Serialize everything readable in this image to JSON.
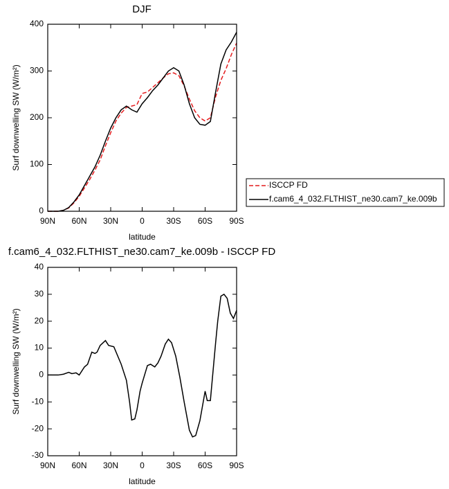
{
  "chart_data": [
    {
      "type": "line",
      "title": "DJF",
      "xlabel": "latitude",
      "ylabel": "Surf downwelling SW (W/m²)",
      "x": [
        90,
        80,
        75,
        70,
        65,
        60,
        55,
        50,
        45,
        40,
        35,
        30,
        25,
        20,
        15,
        10,
        5,
        0,
        -5,
        -10,
        -15,
        -20,
        -25,
        -30,
        -35,
        -40,
        -45,
        -50,
        -55,
        -60,
        -65,
        -70,
        -75,
        -80,
        -85,
        -90
      ],
      "series": [
        {
          "name": "ISCCP FD",
          "color": "#e41a1c",
          "dashed": true,
          "values": [
            0,
            0,
            2,
            7,
            18,
            32,
            50,
            68,
            88,
            110,
            140,
            168,
            193,
            210,
            222,
            225,
            228,
            252,
            255,
            265,
            275,
            285,
            294,
            296,
            290,
            268,
            240,
            215,
            200,
            193,
            200,
            245,
            280,
            305,
            335,
            360
          ]
        },
        {
          "name": "f.cam6_4_032.FLTHIST_ne30.cam7_ke.009b",
          "color": "#000000",
          "dashed": false,
          "values": [
            0,
            0,
            2,
            8,
            20,
            35,
            55,
            75,
            95,
            120,
            150,
            178,
            200,
            217,
            225,
            217,
            212,
            230,
            243,
            258,
            270,
            285,
            300,
            307,
            300,
            270,
            230,
            200,
            186,
            184,
            192,
            255,
            315,
            345,
            362,
            383
          ]
        }
      ],
      "xlim": [
        90,
        -90
      ],
      "xticks": [
        {
          "value": 90,
          "label": "90N"
        },
        {
          "value": 60,
          "label": "60N"
        },
        {
          "value": 30,
          "label": "30N"
        },
        0,
        {
          "value": -30,
          "label": "30S"
        },
        {
          "value": -60,
          "label": "60S"
        },
        {
          "value": -90,
          "label": "90S"
        }
      ],
      "ylim": [
        0,
        400
      ],
      "yticks": [
        0,
        100,
        200,
        300,
        400
      ],
      "legend": "right"
    },
    {
      "type": "line",
      "title": "f.cam6_4_032.FLTHIST_ne30.cam7_ke.009b - ISCCP FD",
      "xlabel": "latitude",
      "ylabel": "Surf downwelling SW (W/m²)",
      "x": [
        90,
        80,
        75,
        70,
        67,
        63,
        60,
        55,
        52,
        48,
        45,
        43,
        40,
        35,
        32,
        27,
        20,
        15,
        12,
        10,
        7,
        5,
        2,
        0,
        -5,
        -8,
        -12,
        -15,
        -18,
        -22,
        -25,
        -28,
        -32,
        -36,
        -40,
        -45,
        -48,
        -51,
        -55,
        -60,
        -62,
        -65,
        -70,
        -72,
        -75,
        -78,
        -81,
        -84,
        -87,
        -90
      ],
      "series": [
        {
          "color": "#000000",
          "dashed": false,
          "values": [
            0,
            0,
            0.3,
            1,
            0.5,
            0.8,
            0,
            3,
            4,
            8.5,
            8,
            8.5,
            11,
            12.8,
            11,
            10.5,
            4,
            -2,
            -10,
            -16.7,
            -16.3,
            -13,
            -6,
            -3,
            3.5,
            4,
            3,
            4.5,
            7,
            11.5,
            13.3,
            12,
            7,
            -1,
            -10,
            -20.5,
            -23,
            -22.5,
            -17,
            -6,
            -9.5,
            -9.5,
            12,
            20,
            29.3,
            30,
            28.5,
            23,
            21,
            24
          ]
        }
      ],
      "xlim": [
        90,
        -90
      ],
      "xticks": [
        {
          "value": 90,
          "label": "90N"
        },
        {
          "value": 60,
          "label": "60N"
        },
        {
          "value": 30,
          "label": "30N"
        },
        0,
        {
          "value": -30,
          "label": "30S"
        },
        {
          "value": -60,
          "label": "60S"
        },
        {
          "value": -90,
          "label": "90S"
        }
      ],
      "ylim": [
        -30,
        40
      ],
      "yticks": [
        -30,
        -20,
        -10,
        0,
        10,
        20,
        30,
        40
      ]
    }
  ]
}
